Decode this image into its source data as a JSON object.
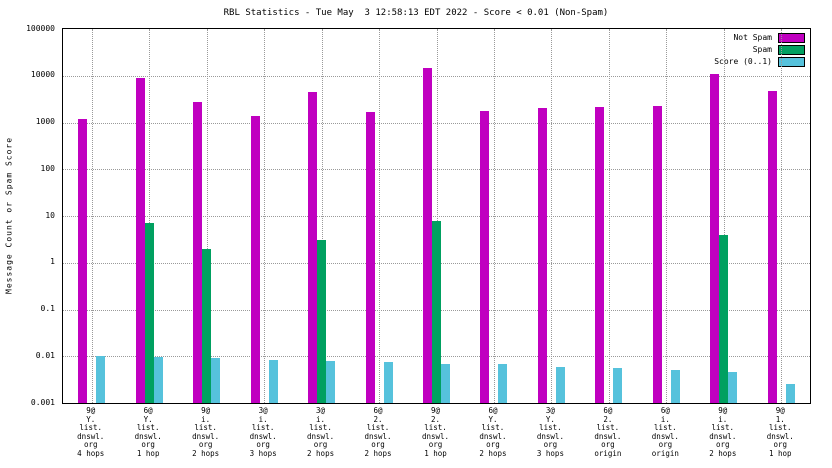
{
  "title": "RBL Statistics - Tue May  3 12:58:13 EDT 2022 - Score < 0.01 (Non-Spam)",
  "chart_data": {
    "type": "bar",
    "title": "RBL Statistics - Tue May  3 12:58:13 EDT 2022 - Score < 0.01 (Non-Spam)",
    "ylabel": "Message Count or Spam Score",
    "xlabel": "",
    "y_scale": "log",
    "ylim": [
      0.001,
      100000
    ],
    "grid": true,
    "legend_position": "top-right-inside",
    "y_ticks": [
      "100000",
      "10000",
      "1000",
      "100",
      "10",
      "1",
      "0.1",
      "0.01",
      "0.001"
    ],
    "categories": [
      [
        "9@",
        "Y.",
        "list.",
        "dnswl.",
        "org",
        "4 hops"
      ],
      [
        "6@",
        "Y.",
        "list.",
        "dnswl.",
        "org",
        "1 hop"
      ],
      [
        "9@",
        "i.",
        "list.",
        "dnswl.",
        "org",
        "2 hops"
      ],
      [
        "3@",
        "i.",
        "list.",
        "dnswl.",
        "org",
        "3 hops"
      ],
      [
        "3@",
        "i.",
        "list.",
        "dnswl.",
        "org",
        "2 hops"
      ],
      [
        "6@",
        "2.",
        "list.",
        "dnswl.",
        "org",
        "2 hops"
      ],
      [
        "9@",
        "2.",
        "list.",
        "dnswl.",
        "org",
        "1 hop"
      ],
      [
        "6@",
        "Y.",
        "list.",
        "dnswl.",
        "org",
        "2 hops"
      ],
      [
        "3@",
        "Y.",
        "list.",
        "dnswl.",
        "org",
        "3 hops"
      ],
      [
        "6@",
        "2.",
        "list.",
        "dnswl.",
        "org",
        "origin"
      ],
      [
        "6@",
        "i.",
        "list.",
        "dnswl.",
        "org",
        "origin"
      ],
      [
        "9@",
        "i.",
        "list.",
        "dnswl.",
        "org",
        "2 hops"
      ],
      [
        "9@",
        "1.",
        "list.",
        "dnswl.",
        "org",
        "1 hop"
      ]
    ],
    "series": [
      {
        "name": "Not Spam",
        "color": "#c000c0",
        "values": [
          1200,
          9000,
          2700,
          1400,
          4500,
          1700,
          15000,
          1750,
          2000,
          2200,
          2300,
          11000,
          4800
        ]
      },
      {
        "name": "Spam",
        "color": "#00a060",
        "values": [
          null,
          7,
          2,
          null,
          3,
          null,
          8,
          null,
          null,
          null,
          null,
          4,
          null
        ]
      },
      {
        "name": "Score (0..1)",
        "color": "#56c2dc",
        "values": [
          0.01,
          0.0095,
          0.009,
          0.0085,
          0.008,
          0.0075,
          0.007,
          0.0068,
          0.006,
          0.0055,
          0.005,
          0.0045,
          0.0026
        ]
      }
    ]
  }
}
